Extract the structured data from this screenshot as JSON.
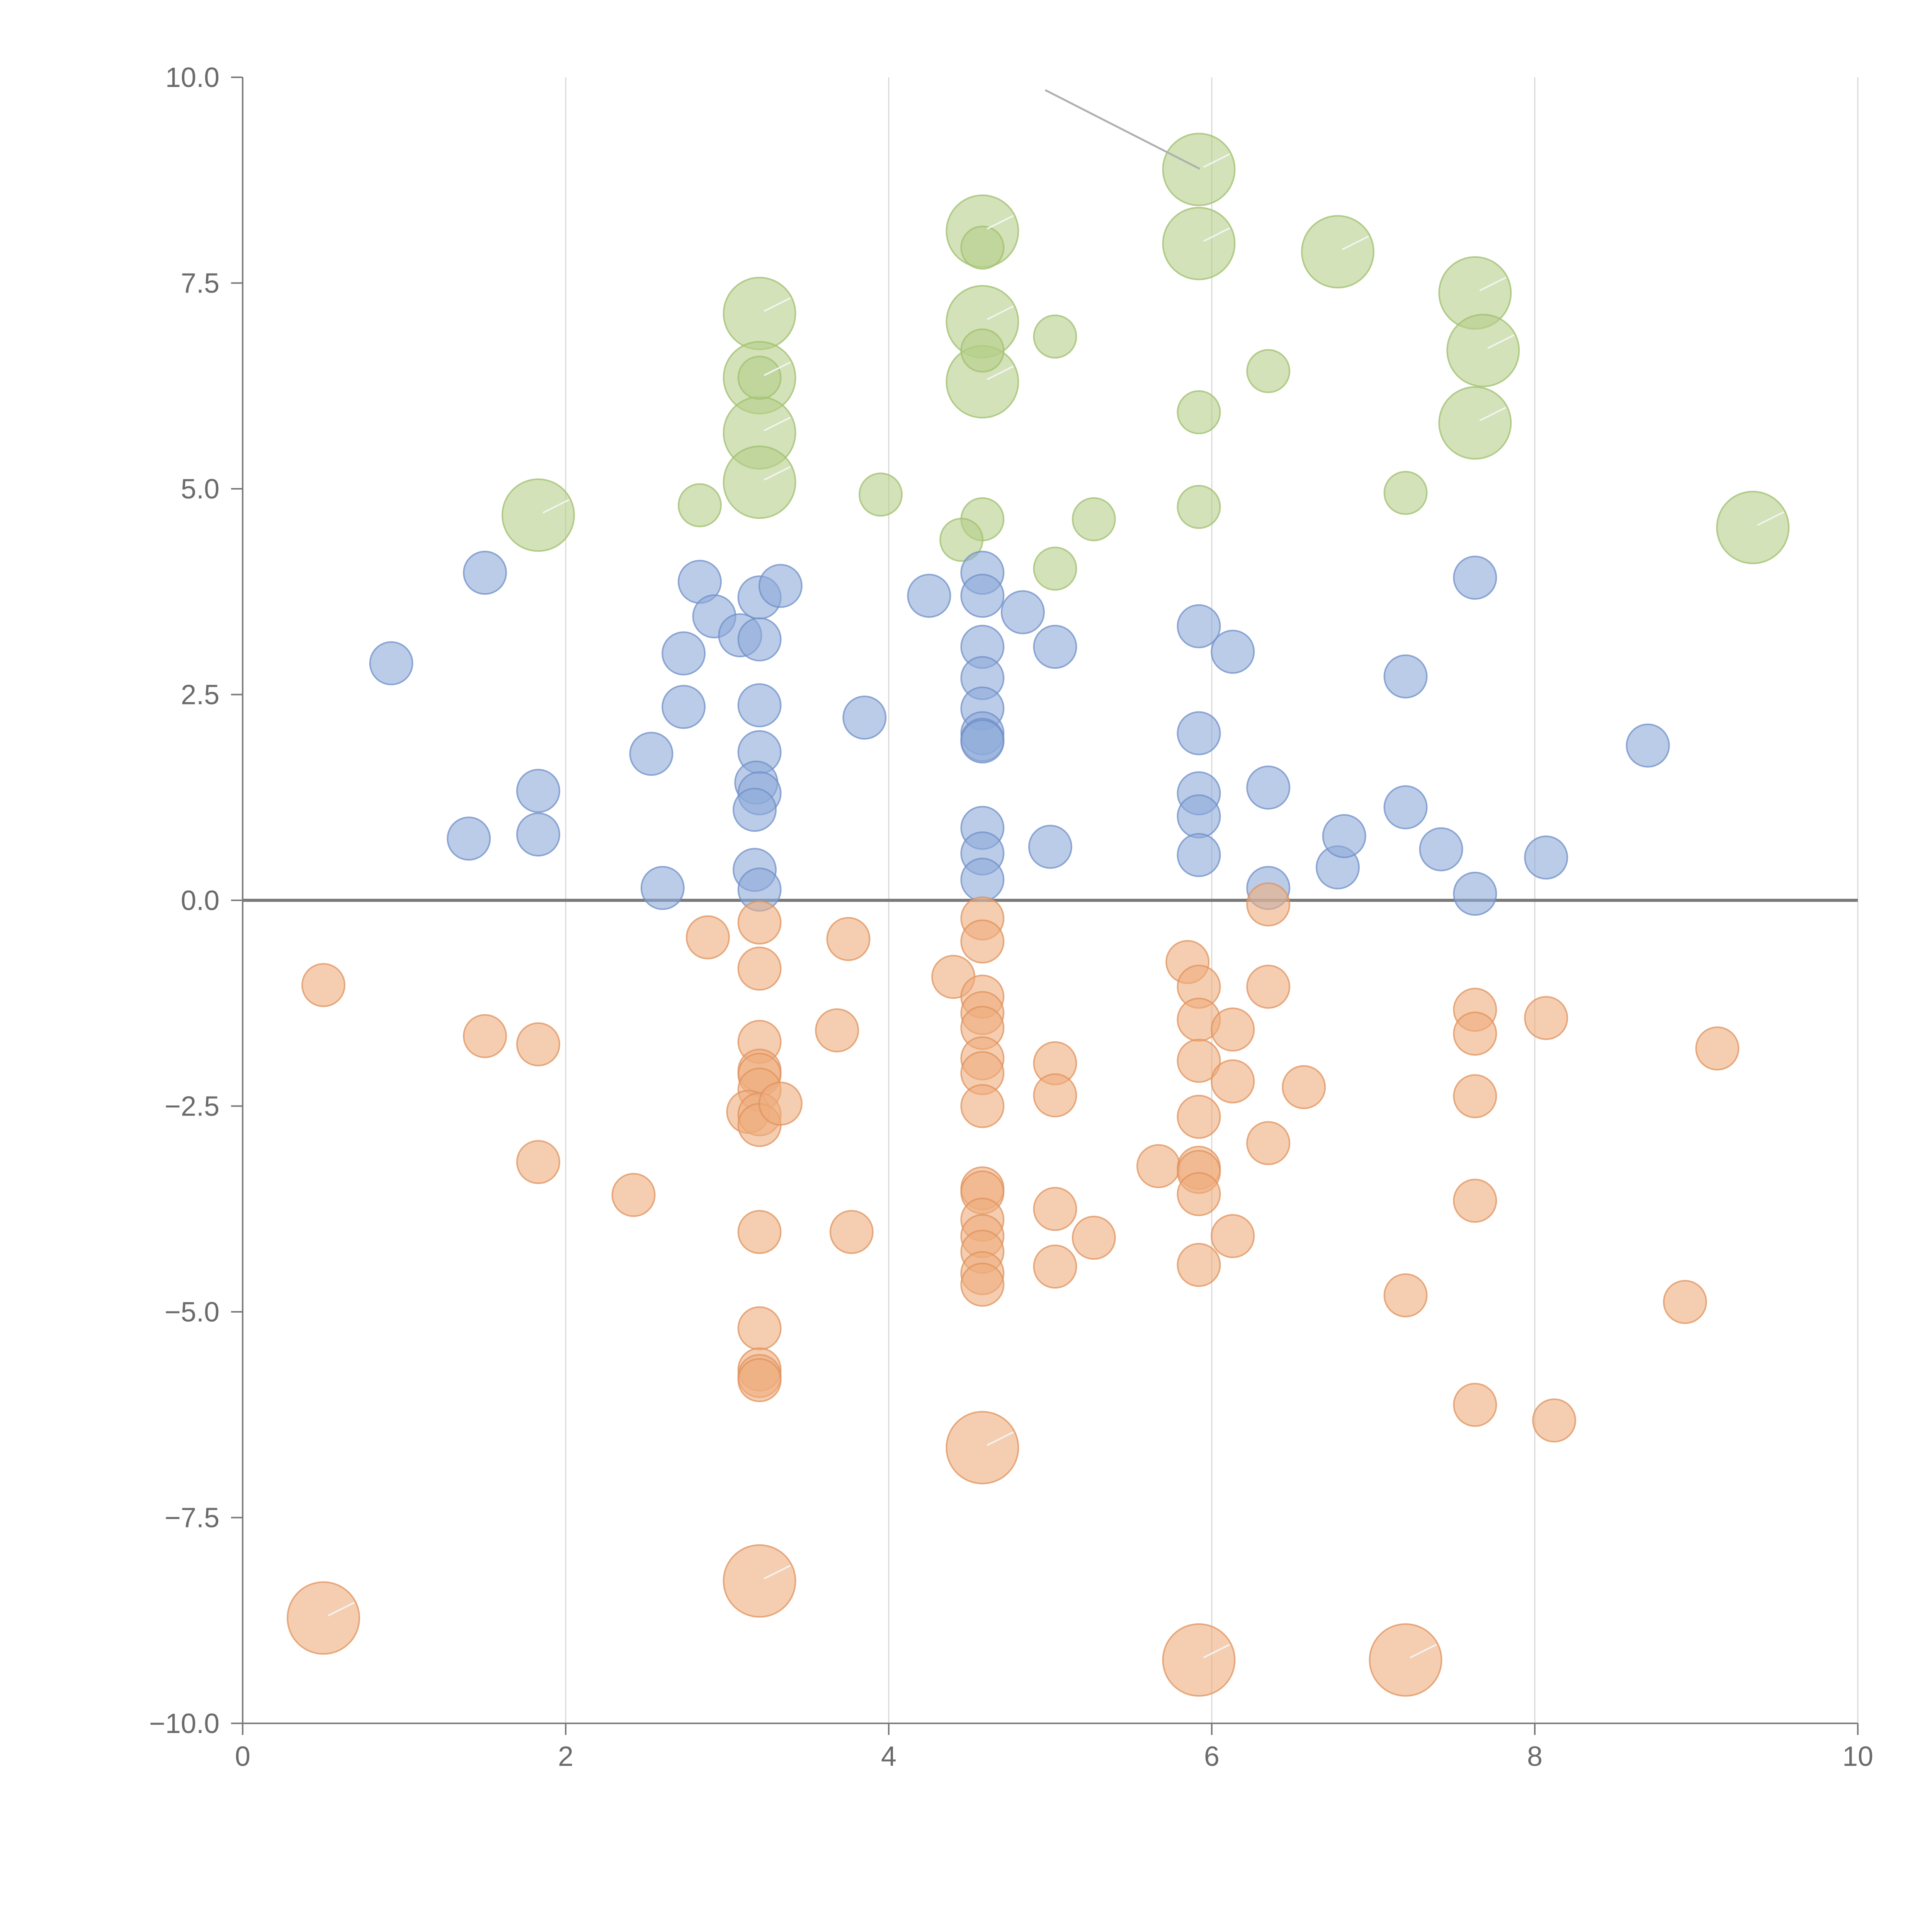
{
  "chart_data": {
    "type": "scatter",
    "title": "",
    "xlabel": "",
    "ylabel": "",
    "xlim": [
      0,
      10
    ],
    "ylim": [
      -10,
      10
    ],
    "xticks": [
      "0",
      "2",
      "4",
      "6",
      "8",
      "10"
    ],
    "yticks": [
      "10.0",
      "7.5",
      "5.0",
      "2.5",
      "0.0",
      "−2.5",
      "−5.0",
      "−7.5",
      "−10.0"
    ],
    "vertical_grid": true,
    "horizontal_grid": false,
    "zero_line": true,
    "legend": "none",
    "colors": {
      "green": {
        "fill": "#b5cf89",
        "stroke": "#9fbf6e"
      },
      "blue": {
        "fill": "#8eaad8",
        "stroke": "#6f8fc8"
      },
      "orange": {
        "fill": "#eeae7d",
        "stroke": "#e0925c"
      }
    },
    "series": [
      {
        "color": "green",
        "points": [
          [
            5.92,
            8.88,
            2
          ],
          [
            5.92,
            7.98,
            2
          ],
          [
            6.78,
            7.88,
            2
          ],
          [
            7.63,
            7.38,
            2
          ],
          [
            7.68,
            6.68,
            2
          ],
          [
            7.63,
            5.8,
            2
          ],
          [
            9.35,
            4.53,
            2
          ],
          [
            4.58,
            8.13,
            2
          ],
          [
            4.58,
            7.03,
            2
          ],
          [
            4.58,
            6.3,
            2
          ],
          [
            3.2,
            7.13,
            2
          ],
          [
            3.2,
            6.35,
            2
          ],
          [
            3.2,
            5.68,
            2
          ],
          [
            3.2,
            5.08,
            2
          ],
          [
            1.83,
            4.68,
            2
          ],
          [
            4.58,
            7.93,
            1
          ],
          [
            4.58,
            6.68,
            1
          ],
          [
            5.03,
            6.85,
            1
          ],
          [
            6.35,
            6.43,
            1
          ],
          [
            5.92,
            5.93,
            1
          ],
          [
            3.2,
            6.35,
            1
          ],
          [
            7.2,
            4.95,
            1
          ],
          [
            5.92,
            4.78,
            1
          ],
          [
            5.27,
            4.63,
            1
          ],
          [
            4.58,
            4.63,
            1
          ],
          [
            3.95,
            4.93,
            1
          ],
          [
            2.83,
            4.8,
            1
          ],
          [
            4.45,
            4.38,
            1
          ],
          [
            5.03,
            4.03,
            1
          ]
        ]
      },
      {
        "color": "blue",
        "points": [
          [
            1.5,
            3.98,
            1
          ],
          [
            0.92,
            2.88,
            1
          ],
          [
            1.83,
            1.33,
            1
          ],
          [
            1.83,
            0.8,
            1
          ],
          [
            1.4,
            0.75,
            1
          ],
          [
            2.53,
            1.78,
            1
          ],
          [
            2.6,
            0.15,
            1
          ],
          [
            2.73,
            2.35,
            1
          ],
          [
            2.73,
            3.0,
            1
          ],
          [
            2.83,
            3.87,
            1
          ],
          [
            2.92,
            3.45,
            1
          ],
          [
            3.08,
            3.22,
            1
          ],
          [
            3.2,
            3.68,
            1
          ],
          [
            3.2,
            3.17,
            1
          ],
          [
            3.33,
            3.82,
            1
          ],
          [
            3.2,
            2.37,
            1
          ],
          [
            3.2,
            1.8,
            1
          ],
          [
            3.18,
            1.43,
            1
          ],
          [
            3.2,
            1.3,
            1
          ],
          [
            3.17,
            1.1,
            1
          ],
          [
            3.17,
            0.37,
            1
          ],
          [
            3.2,
            0.13,
            1
          ],
          [
            3.85,
            2.22,
            1
          ],
          [
            4.25,
            3.7,
            1
          ],
          [
            4.58,
            3.98,
            1
          ],
          [
            4.58,
            3.7,
            1
          ],
          [
            4.58,
            3.08,
            1
          ],
          [
            4.58,
            2.7,
            1
          ],
          [
            4.58,
            2.33,
            1
          ],
          [
            4.58,
            2.03,
            1
          ],
          [
            4.58,
            1.95,
            1
          ],
          [
            4.58,
            1.93,
            1
          ],
          [
            4.58,
            0.88,
            1
          ],
          [
            4.58,
            0.57,
            1
          ],
          [
            4.58,
            0.25,
            1
          ],
          [
            4.83,
            3.5,
            1
          ],
          [
            5.03,
            3.08,
            1
          ],
          [
            5.0,
            0.65,
            1
          ],
          [
            5.92,
            3.33,
            1
          ],
          [
            5.92,
            2.03,
            1
          ],
          [
            5.92,
            1.3,
            1
          ],
          [
            5.92,
            1.02,
            1
          ],
          [
            5.92,
            0.55,
            1
          ],
          [
            6.13,
            3.02,
            1
          ],
          [
            6.35,
            1.37,
            1
          ],
          [
            6.35,
            0.15,
            1
          ],
          [
            6.78,
            0.4,
            1
          ],
          [
            6.82,
            0.78,
            1
          ],
          [
            7.2,
            2.72,
            1
          ],
          [
            7.2,
            1.13,
            1
          ],
          [
            7.42,
            0.62,
            1
          ],
          [
            7.63,
            3.92,
            1
          ],
          [
            7.63,
            0.08,
            1
          ],
          [
            8.07,
            0.52,
            1
          ],
          [
            8.7,
            1.88,
            1
          ]
        ]
      },
      {
        "color": "orange",
        "points": [
          [
            0.5,
            -1.03,
            1
          ],
          [
            1.5,
            -1.65,
            1
          ],
          [
            1.83,
            -1.75,
            1
          ],
          [
            1.83,
            -3.18,
            1
          ],
          [
            2.42,
            -3.58,
            1
          ],
          [
            2.88,
            -0.45,
            1
          ],
          [
            3.2,
            -0.27,
            1
          ],
          [
            3.2,
            -0.83,
            1
          ],
          [
            3.2,
            -1.72,
            1
          ],
          [
            3.2,
            -2.07,
            1
          ],
          [
            3.2,
            -2.12,
            1
          ],
          [
            3.2,
            -2.3,
            1
          ],
          [
            3.13,
            -2.57,
            1
          ],
          [
            3.2,
            -2.6,
            1
          ],
          [
            3.2,
            -2.73,
            1
          ],
          [
            3.33,
            -2.47,
            1
          ],
          [
            3.2,
            -4.03,
            1
          ],
          [
            3.2,
            -5.2,
            1
          ],
          [
            3.2,
            -5.7,
            1
          ],
          [
            3.2,
            -5.78,
            1
          ],
          [
            3.2,
            -5.83,
            1
          ],
          [
            3.68,
            -1.58,
            1
          ],
          [
            3.75,
            -0.47,
            1
          ],
          [
            3.77,
            -4.03,
            1
          ],
          [
            4.4,
            -0.93,
            1
          ],
          [
            4.58,
            -0.22,
            1
          ],
          [
            4.58,
            -0.5,
            1
          ],
          [
            4.58,
            -1.17,
            1
          ],
          [
            4.58,
            -1.37,
            1
          ],
          [
            4.58,
            -1.55,
            1
          ],
          [
            4.58,
            -1.92,
            1
          ],
          [
            4.58,
            -2.1,
            1
          ],
          [
            4.58,
            -2.5,
            1
          ],
          [
            4.58,
            -3.5,
            1
          ],
          [
            4.58,
            -3.55,
            1
          ],
          [
            4.58,
            -3.88,
            1
          ],
          [
            4.58,
            -4.08,
            1
          ],
          [
            4.58,
            -4.27,
            1
          ],
          [
            4.58,
            -4.53,
            1
          ],
          [
            4.58,
            -4.67,
            1
          ],
          [
            5.03,
            -1.98,
            1
          ],
          [
            5.03,
            -2.37,
            1
          ],
          [
            5.03,
            -3.75,
            1
          ],
          [
            5.03,
            -4.45,
            1
          ],
          [
            5.27,
            -4.1,
            1
          ],
          [
            5.67,
            -3.23,
            1
          ],
          [
            5.85,
            -0.75,
            1
          ],
          [
            5.92,
            -1.05,
            1
          ],
          [
            5.92,
            -1.45,
            1
          ],
          [
            5.92,
            -1.95,
            1
          ],
          [
            5.92,
            -2.63,
            1
          ],
          [
            5.92,
            -3.25,
            1
          ],
          [
            5.92,
            -3.3,
            1
          ],
          [
            5.92,
            -3.57,
            1
          ],
          [
            5.92,
            -4.43,
            1
          ],
          [
            6.13,
            -1.57,
            1
          ],
          [
            6.13,
            -2.2,
            1
          ],
          [
            6.13,
            -4.08,
            1
          ],
          [
            6.35,
            -0.05,
            1
          ],
          [
            6.35,
            -1.05,
            1
          ],
          [
            6.35,
            -2.95,
            1
          ],
          [
            6.57,
            -2.27,
            1
          ],
          [
            7.2,
            -4.8,
            1
          ],
          [
            7.63,
            -1.33,
            1
          ],
          [
            7.63,
            -1.62,
            1
          ],
          [
            7.63,
            -2.38,
            1
          ],
          [
            7.63,
            -3.65,
            1
          ],
          [
            7.63,
            -6.13,
            1
          ],
          [
            8.07,
            -1.43,
            1
          ],
          [
            8.12,
            -6.32,
            1
          ],
          [
            8.93,
            -4.88,
            1
          ],
          [
            9.13,
            -1.8,
            1
          ],
          [
            0.5,
            -8.72,
            2
          ],
          [
            3.2,
            -8.27,
            2
          ],
          [
            4.58,
            -6.65,
            2
          ],
          [
            5.92,
            -9.23,
            2
          ],
          [
            7.2,
            -9.23,
            2
          ]
        ]
      }
    ]
  }
}
